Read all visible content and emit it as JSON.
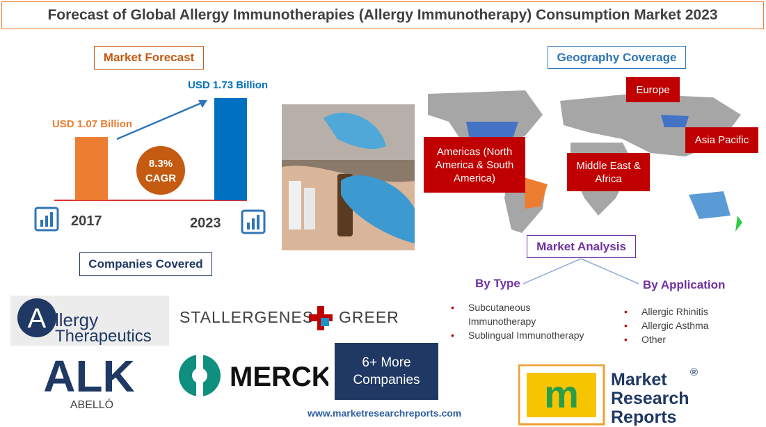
{
  "title": "Forecast of Global Allergy Immunotherapies (Allergy Immunotherapy) Consumption Market 2023",
  "market_forecast": {
    "heading": "Market Forecast",
    "categories": [
      "2017",
      "2023"
    ],
    "values": [
      1.07,
      1.73
    ],
    "value_labels": [
      "USD 1.07 Billion",
      "USD 1.73 Billion"
    ],
    "colors": [
      "#ed7d31",
      "#0070c0"
    ],
    "cagr": "8.3%",
    "cagr_label": "CAGR"
  },
  "companies": {
    "heading": "Companies Covered",
    "allergy_therapeutics": {
      "initial": "A",
      "rest": "llergy",
      "line2": "Therapeutics"
    },
    "stallergenes": {
      "left": "STALLERGENES",
      "right": "GREER"
    },
    "alk": {
      "name": "ALK",
      "sub": "ABELLÓ"
    },
    "merck": "MERCK",
    "more": "6+ More Companies"
  },
  "geography": {
    "heading": "Geography Coverage",
    "regions": [
      "Europe",
      "Asia Pacific",
      "Americas (North America & South America)",
      "Middle East & Africa"
    ]
  },
  "analysis": {
    "heading": "Market Analysis",
    "by_type": {
      "title": "By Type",
      "items": [
        "Subcutaneous Immunotherapy",
        "Sublingual Immunotherapy"
      ]
    },
    "by_application": {
      "title": "By Application",
      "items": [
        "Allergic Rhinitis",
        "Allergic Asthma",
        "Other"
      ]
    }
  },
  "website": "www.marketresearchreports.com",
  "brand": {
    "lines": [
      "Market",
      "Research",
      "Reports"
    ],
    "mark": "®"
  }
}
